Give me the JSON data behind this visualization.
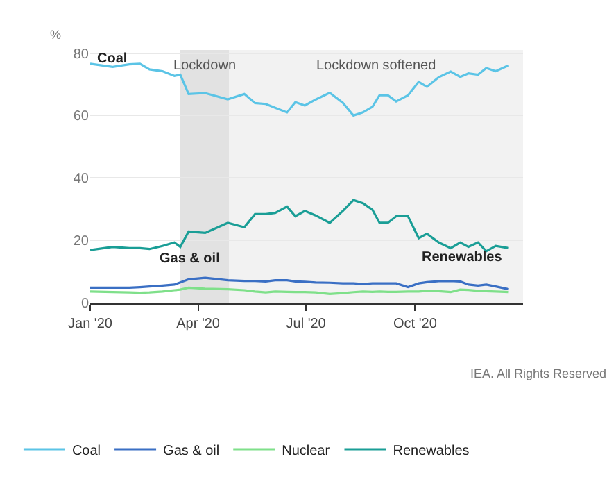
{
  "chart_data": {
    "type": "line",
    "ylabel": "%",
    "x": [
      "2020-01-01",
      "2020-01-20",
      "2020-02-03",
      "2020-02-12",
      "2020-02-20",
      "2020-03-02",
      "2020-03-12",
      "2020-03-17",
      "2020-03-24",
      "2020-04-07",
      "2020-04-26",
      "2020-05-10",
      "2020-05-19",
      "2020-05-28",
      "2020-06-05",
      "2020-06-15",
      "2020-06-22",
      "2020-06-30",
      "2020-07-09",
      "2020-07-21",
      "2020-08-01",
      "2020-08-10",
      "2020-08-18",
      "2020-08-26",
      "2020-09-01",
      "2020-09-08",
      "2020-09-15",
      "2020-09-25",
      "2020-10-04",
      "2020-10-11",
      "2020-10-21",
      "2020-10-31",
      "2020-11-08",
      "2020-11-15",
      "2020-11-23",
      "2020-11-30",
      "2020-12-08",
      "2020-12-19"
    ],
    "series": [
      {
        "name": "Coal",
        "color": "#5bc4e6",
        "values": [
          76.6,
          75.6,
          76.4,
          76.6,
          74.8,
          74.2,
          72.7,
          73.1,
          66.9,
          67.2,
          65.2,
          66.9,
          64,
          63.7,
          62.5,
          61,
          64.3,
          63.2,
          65.1,
          67.3,
          64.1,
          60,
          61,
          62.8,
          66.5,
          66.5,
          64.5,
          66.5,
          70.8,
          69.2,
          72.3,
          74.1,
          72.4,
          73.5,
          73.1,
          75.2,
          74.2,
          76.1
        ]
      },
      {
        "name": "Gas & oil",
        "color": "#3a6fc4",
        "values": [
          4.8,
          4.8,
          4.8,
          5,
          5.2,
          5.5,
          5.8,
          6.5,
          7.5,
          8,
          7.2,
          7,
          7,
          6.8,
          7.2,
          7.2,
          6.8,
          6.7,
          6.5,
          6.4,
          6.2,
          6.2,
          6,
          6.2,
          6.2,
          6.2,
          6.2,
          5,
          6.2,
          6.6,
          6.9,
          7,
          6.8,
          5.8,
          5.5,
          5.8,
          5.2,
          4.3
        ]
      },
      {
        "name": "Nuclear",
        "color": "#7fe08a",
        "values": [
          3.6,
          3.4,
          3.3,
          3.2,
          3.3,
          3.6,
          4,
          4.2,
          4.8,
          4.5,
          4.3,
          4,
          3.6,
          3.3,
          3.6,
          3.5,
          3.4,
          3.4,
          3.3,
          2.8,
          3.1,
          3.4,
          3.6,
          3.5,
          3.6,
          3.5,
          3.5,
          3.6,
          3.6,
          3.8,
          3.7,
          3.4,
          4.2,
          4.1,
          3.8,
          3.7,
          3.6,
          3.4
        ]
      },
      {
        "name": "Renewables",
        "color": "#1a9e96",
        "values": [
          16.9,
          17.9,
          17.5,
          17.5,
          17.2,
          18.2,
          19.3,
          17.9,
          22.8,
          22.4,
          25.6,
          24.2,
          28.4,
          28.4,
          28.8,
          30.8,
          27.7,
          29.4,
          28,
          25.6,
          29.4,
          32.9,
          31.9,
          29.8,
          25.6,
          25.6,
          27.7,
          27.7,
          20.7,
          22.1,
          19.3,
          17.5,
          19.3,
          17.9,
          19.3,
          16.5,
          18.2,
          17.5
        ]
      }
    ],
    "xlim": [
      "2020-01-01",
      "2020-12-31"
    ],
    "xticks": [
      {
        "value": "2020-01-01",
        "label": "Jan '20"
      },
      {
        "value": "2020-04-01",
        "label": "Apr '20"
      },
      {
        "value": "2020-07-01",
        "label": "Jul '20"
      },
      {
        "value": "2020-10-01",
        "label": "Oct '20"
      }
    ],
    "ylim": [
      0,
      81
    ],
    "yticks": [
      0,
      20,
      40,
      60,
      80
    ],
    "bands": [
      {
        "axis": "x",
        "from": "2020-03-17",
        "to": "2020-04-27",
        "label": "Lockdown",
        "color": "#e2e2e2"
      },
      {
        "axis": "x",
        "from": "2020-04-27",
        "to": "2020-12-31",
        "label": "Lockdown softened",
        "color": "#f2f2f2"
      }
    ],
    "annotations": [
      {
        "text": "Coal",
        "x": "2020-01-20",
        "y": 78
      },
      "Gas & oil",
      "Renewables",
      "IEA. All Rights Reserved"
    ],
    "grid": "y",
    "legend": "bottom",
    "marker": "none",
    "line_style": "solid"
  }
}
